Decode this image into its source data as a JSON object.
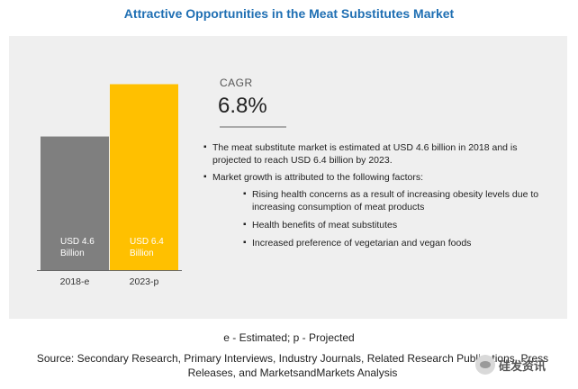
{
  "title": "Attractive Opportunities in the Meat Substitutes Market",
  "chart_data": {
    "type": "bar",
    "categories": [
      "2018-e",
      "2023-p"
    ],
    "values": [
      4.6,
      6.4
    ],
    "data_labels": [
      "USD 4.6 Billion",
      "USD 6.4 Billion"
    ],
    "ylim": [
      0,
      7.5
    ],
    "colors": [
      "#7f7f7f",
      "#ffc000"
    ],
    "grid": false
  },
  "cagr": {
    "label": "CAGR",
    "value": "6.8%"
  },
  "bullets": {
    "main_1": "The meat substitute market is estimated at USD 4.6 billion in 2018 and is projected to reach USD 6.4 billion by 2023.",
    "main_2": "Market growth is attributed to the following factors:",
    "sub": [
      "Rising health concerns as a result of increasing obesity levels due to increasing consumption of meat products",
      "Health benefits of meat substitutes",
      "Increased preference of vegetarian and vegan foods"
    ]
  },
  "legend_note": "e - Estimated; p - Projected",
  "source": "Source: Secondary Research, Primary Interviews, Industry Journals, Related Research Publications, Press Releases, and MarketsandMarkets Analysis",
  "watermark": {
    "text": "硅发资讯",
    "icon": "wechat-icon"
  }
}
